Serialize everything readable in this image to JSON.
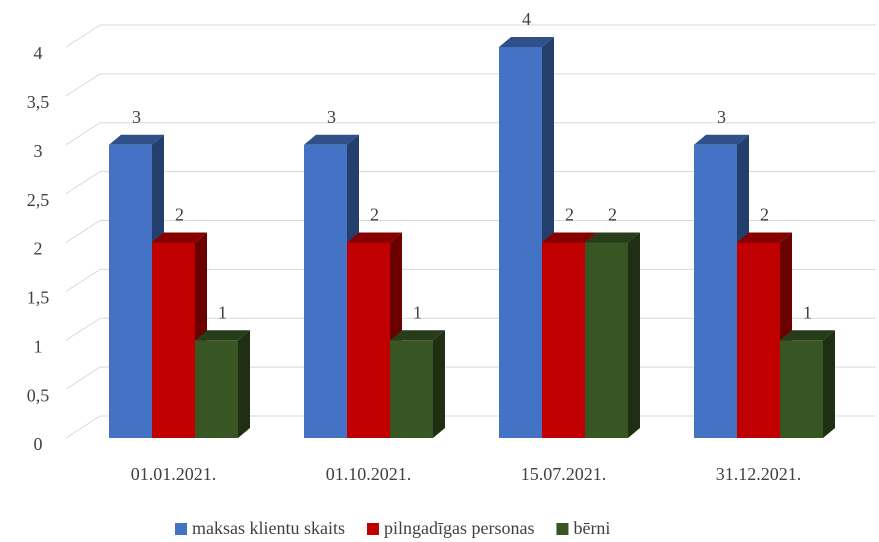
{
  "chart_data": {
    "type": "bar3d",
    "categories": [
      "01.01.2021.",
      "01.10.2021.",
      "15.07.2021.",
      "31.12.2021."
    ],
    "series": [
      {
        "name": "maksas klientu skaits",
        "color": "#4472c4",
        "values": [
          3,
          3,
          4,
          3
        ]
      },
      {
        "name": "pilngadīgas personas",
        "color": "#c00000",
        "values": [
          2,
          2,
          2,
          2
        ]
      },
      {
        "name": "bērni",
        "color": "#375623",
        "values": [
          1,
          1,
          2,
          1
        ]
      }
    ],
    "ylim": [
      0,
      4
    ],
    "yticks": [
      0,
      {
        "value": 0.5,
        "label": "0,5"
      },
      1,
      {
        "value": 1.5,
        "label": "1,5"
      },
      2,
      {
        "value": 2.5,
        "label": "2,5"
      },
      3,
      {
        "value": 3.5,
        "label": "3,5"
      },
      4
    ],
    "grid": true,
    "legend": "bottom"
  }
}
